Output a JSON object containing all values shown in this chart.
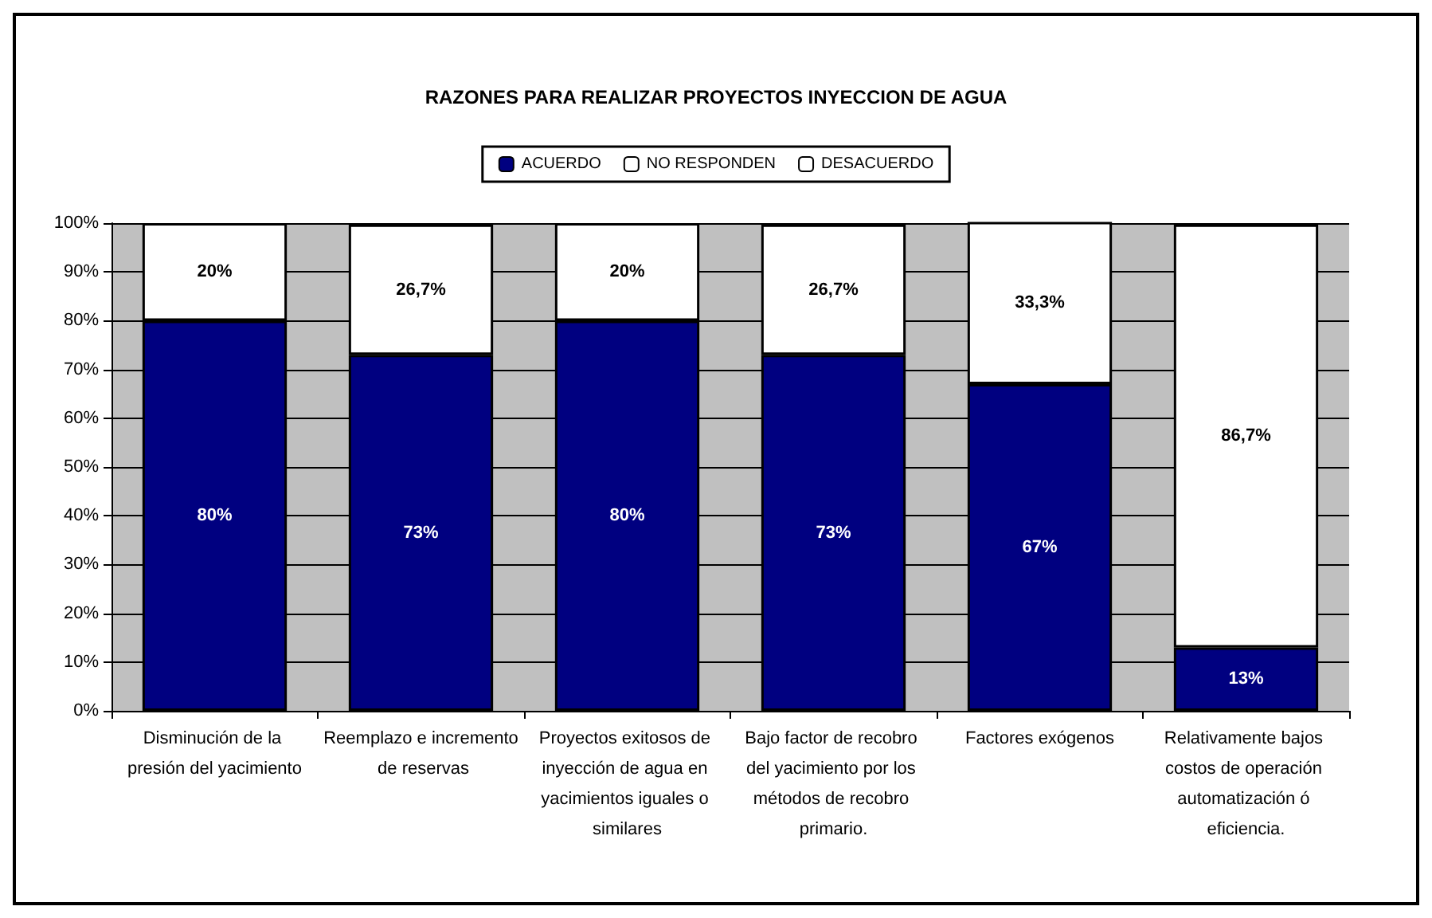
{
  "chart_data": {
    "type": "bar",
    "title": "RAZONES PARA REALIZAR PROYECTOS INYECCION DE AGUA",
    "stacked": true,
    "categories": [
      "Disminución de la presión del yacimiento",
      "Reemplazo e incremento de reservas",
      "Proyectos exitosos de inyección de agua en yacimientos iguales o similares",
      "Bajo factor de recobro del yacimiento por los métodos de recobro primario.",
      "Factores exógenos",
      "Relativamente bajos costos de operación automatización ó eficiencia."
    ],
    "series": [
      {
        "name": "ACUERDO",
        "color": "#000080",
        "values": [
          80,
          73,
          80,
          73,
          67,
          13
        ],
        "value_labels": [
          "80%",
          "73%",
          "80%",
          "73%",
          "67%",
          "13%"
        ]
      },
      {
        "name": "NO RESPONDEN",
        "color": "#ffffff",
        "values": [
          20,
          26.7,
          20,
          26.7,
          33.3,
          86.7
        ],
        "value_labels": [
          "20%",
          "26,7%",
          "20%",
          "26,7%",
          "33,3%",
          "86,7%"
        ]
      },
      {
        "name": "DESACUERDO",
        "color": "#ffffff",
        "values": [
          0,
          0,
          0,
          0,
          0,
          0
        ]
      }
    ],
    "ylim": [
      0,
      100
    ],
    "yticks": [
      {
        "value": 0,
        "label": "0%"
      },
      {
        "value": 10,
        "label": "10%"
      },
      {
        "value": 20,
        "label": "20%"
      },
      {
        "value": 30,
        "label": "30%"
      },
      {
        "value": 40,
        "label": "40%"
      },
      {
        "value": 50,
        "label": "50%"
      },
      {
        "value": 60,
        "label": "60%"
      },
      {
        "value": 70,
        "label": "70%"
      },
      {
        "value": 80,
        "label": "80%"
      },
      {
        "value": 90,
        "label": "90%"
      },
      {
        "value": 100,
        "label": "100%"
      }
    ],
    "grid": "y",
    "legend": "top"
  }
}
